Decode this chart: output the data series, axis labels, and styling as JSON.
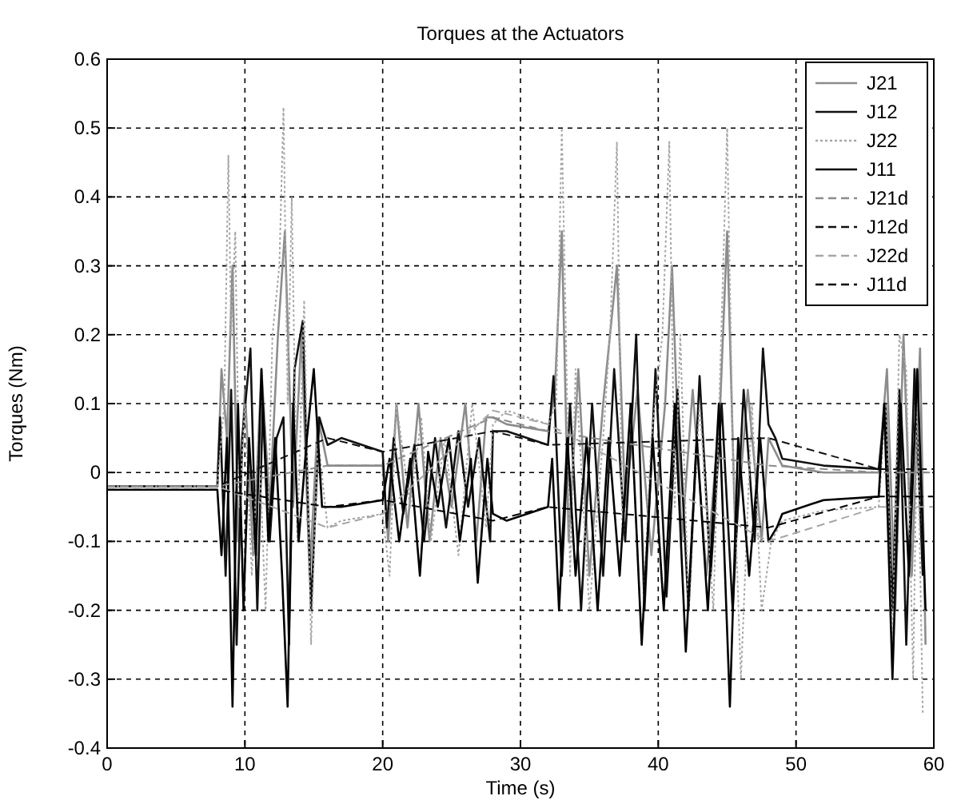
{
  "chart_data": {
    "type": "line",
    "title": "Torques at the Actuators",
    "xlabel": "Time (s)",
    "ylabel": "Torques (Nm)",
    "xlim": [
      0,
      60
    ],
    "ylim": [
      -0.4,
      0.6
    ],
    "xticks": [
      0,
      10,
      20,
      30,
      40,
      50,
      60
    ],
    "yticks": [
      -0.4,
      -0.3,
      -0.2,
      -0.1,
      0,
      0.1,
      0.2,
      0.3,
      0.4,
      0.5,
      0.6
    ],
    "grid": true,
    "legend": "top right",
    "series": [
      {
        "name": "J21",
        "color": "#8c8c8c",
        "line_style": "solid",
        "x": [
          0,
          8,
          8.3,
          8.7,
          9.1,
          9.5,
          10,
          10.6,
          11.2,
          11.8,
          12.4,
          12.9,
          13.5,
          14.1,
          14.7,
          15.3,
          16,
          17,
          20,
          20.4,
          21,
          21.8,
          22.6,
          23.4,
          24.2,
          25,
          26,
          26.8,
          27.5,
          28,
          29,
          32,
          32.5,
          33,
          33.5,
          34.2,
          35,
          36,
          37,
          37.6,
          38.5,
          39.5,
          40.5,
          41,
          41.7,
          42.5,
          43.5,
          44.5,
          45,
          45.6,
          46.5,
          47.5,
          48,
          49,
          52,
          56,
          56.6,
          57.2,
          57.8,
          58.4,
          59,
          59.4
        ],
        "values": [
          -0.02,
          -0.02,
          0.15,
          0.05,
          0.3,
          -0.1,
          0.12,
          -0.12,
          0.15,
          -0.05,
          0.2,
          0.35,
          -0.05,
          0.2,
          -0.15,
          0.08,
          0.01,
          0.01,
          0.01,
          -0.1,
          0.1,
          -0.08,
          0.1,
          -0.1,
          0.05,
          -0.05,
          0.1,
          -0.1,
          0.08,
          0.08,
          0.07,
          0.06,
          0.12,
          0.35,
          -0.1,
          0.15,
          -0.15,
          0.1,
          0.3,
          -0.05,
          0.12,
          -0.12,
          0.1,
          0.3,
          -0.1,
          0.12,
          -0.15,
          0.1,
          0.35,
          -0.1,
          0.12,
          -0.1,
          0.05,
          0.01,
          0,
          0,
          0.15,
          -0.2,
          0.2,
          -0.15,
          0.18,
          -0.25
        ]
      },
      {
        "name": "J12",
        "color": "#111111",
        "line_style": "solid",
        "x": [
          0,
          8,
          8.2,
          8.6,
          9,
          9.4,
          9.8,
          10.4,
          10.9,
          11.3,
          11.8,
          12.3,
          12.8,
          13.2,
          13.6,
          14.2,
          14.8,
          15.4,
          16,
          17,
          20,
          20.3,
          20.8,
          21.5,
          22.3,
          23,
          23.8,
          24.6,
          25.5,
          26.2,
          27,
          27.8,
          28,
          29,
          32,
          32.4,
          33,
          33.6,
          34.4,
          35.2,
          36,
          36.8,
          37.6,
          38.4,
          39,
          39.8,
          40.6,
          41.4,
          42.2,
          43,
          43.8,
          44.6,
          45.4,
          46.2,
          47,
          47.6,
          48,
          48.5,
          49,
          52,
          56,
          56.5,
          57,
          57.5,
          58,
          58.6,
          59.2
        ],
        "values": [
          -0.02,
          -0.02,
          0.08,
          -0.15,
          0.12,
          -0.25,
          0.05,
          0.18,
          -0.2,
          0.1,
          -0.1,
          0.05,
          0.08,
          -0.25,
          0.15,
          0.22,
          -0.2,
          0.08,
          0.04,
          0.05,
          0.03,
          -0.08,
          0.05,
          -0.06,
          0.04,
          -0.1,
          0.05,
          -0.08,
          0.06,
          -0.05,
          0.05,
          -0.1,
          0.06,
          0.06,
          0.04,
          0.14,
          -0.15,
          0.1,
          -0.2,
          0.1,
          -0.15,
          0.15,
          -0.1,
          0.2,
          -0.2,
          0.15,
          -0.18,
          0.12,
          -0.2,
          0.14,
          -0.15,
          0.1,
          -0.2,
          0.12,
          -0.1,
          0.18,
          0.07,
          0.05,
          0.02,
          0.01,
          0.005,
          0.1,
          -0.2,
          0.12,
          -0.25,
          0.15,
          -0.15
        ]
      },
      {
        "name": "J22",
        "color": "#a6a6a6",
        "line_style": "dotted",
        "x": [
          0,
          8,
          8.5,
          8.8,
          9,
          9.3,
          9.6,
          10,
          10.5,
          11,
          11.5,
          12,
          12.5,
          12.8,
          13.1,
          13.4,
          13.8,
          14.3,
          14.8,
          15.3,
          16,
          17,
          20,
          20.5,
          21,
          22,
          22.8,
          23.5,
          24.5,
          25.5,
          26.5,
          27.5,
          28,
          29,
          32,
          32.6,
          33,
          33.3,
          33.6,
          34,
          35,
          36,
          36.5,
          37,
          37.4,
          38,
          38.8,
          39.5,
          40.3,
          40.8,
          41.2,
          41.6,
          42.2,
          43,
          44,
          44.5,
          45,
          45.4,
          46,
          46.8,
          47.5,
          48.2,
          49,
          52,
          56,
          56.5,
          57,
          57.5,
          58,
          58.5,
          58.8,
          59.2
        ],
        "values": [
          -0.02,
          -0.02,
          0.1,
          0.46,
          0.2,
          0.35,
          -0.05,
          0.1,
          -0.15,
          0.05,
          -0.2,
          0.2,
          0.3,
          0.53,
          0.1,
          0.4,
          -0.1,
          0.25,
          -0.25,
          0.05,
          -0.08,
          -0.07,
          -0.06,
          -0.15,
          0.1,
          -0.05,
          0.08,
          -0.1,
          0.05,
          -0.12,
          0.1,
          -0.08,
          0.07,
          0.09,
          0.07,
          0.1,
          0.5,
          0.2,
          -0.15,
          0.15,
          -0.2,
          0.05,
          0.2,
          0.48,
          -0.1,
          0.1,
          -0.25,
          0.05,
          0.2,
          0.48,
          -0.05,
          0.2,
          -0.2,
          0.1,
          -0.2,
          0.15,
          0.5,
          0.05,
          -0.3,
          0.1,
          -0.2,
          -0.1,
          -0.07,
          -0.055,
          -0.05,
          0.1,
          -0.25,
          0.2,
          0.15,
          -0.3,
          0.1,
          -0.35
        ]
      },
      {
        "name": "J11",
        "color": "#000000",
        "line_style": "solid",
        "x": [
          0,
          8,
          8.3,
          8.7,
          9.1,
          9.5,
          9.9,
          10.3,
          10.8,
          11.2,
          11.7,
          12.2,
          12.7,
          13.1,
          13.5,
          13.9,
          14.5,
          15,
          15.6,
          16,
          17,
          20,
          20.5,
          21.2,
          22,
          22.7,
          23.3,
          24,
          24.8,
          25.6,
          26.4,
          26.9,
          27.6,
          28,
          29,
          32,
          32.3,
          32.8,
          33.4,
          34,
          34.8,
          35.6,
          36.4,
          37.2,
          38,
          38.8,
          39.6,
          40.4,
          41.2,
          42,
          42.8,
          43.6,
          44.4,
          45.2,
          45.8,
          46.6,
          47.4,
          48,
          48.6,
          49,
          52,
          56,
          56.4,
          57,
          57.6,
          58.2,
          58.8,
          59.4
        ],
        "values": [
          -0.025,
          -0.025,
          -0.12,
          0.05,
          -0.34,
          0.1,
          -0.2,
          0.05,
          -0.12,
          0.15,
          -0.1,
          0.05,
          -0.15,
          -0.34,
          0.1,
          -0.1,
          0.05,
          0.15,
          -0.05,
          -0.05,
          -0.05,
          -0.04,
          0.02,
          -0.1,
          0.02,
          -0.15,
          0.03,
          -0.05,
          0.05,
          -0.1,
          0.02,
          -0.16,
          0.02,
          -0.06,
          -0.07,
          -0.05,
          0.02,
          -0.2,
          0.05,
          -0.15,
          0.05,
          -0.2,
          0.05,
          -0.15,
          0.1,
          -0.25,
          0.05,
          -0.2,
          0.1,
          -0.26,
          0.05,
          -0.2,
          0.1,
          -0.34,
          0.05,
          -0.15,
          0.05,
          -0.1,
          -0.08,
          -0.06,
          -0.04,
          -0.035,
          0.1,
          -0.3,
          0.1,
          -0.15,
          0.15,
          -0.2
        ]
      },
      {
        "name": "J21d",
        "color": "#8c8c8c",
        "line_style": "dashed",
        "x": [
          0,
          8,
          16,
          20,
          28,
          32,
          48,
          56,
          60
        ],
        "values": [
          -0.02,
          -0.02,
          0.01,
          0.01,
          0.08,
          0.06,
          0.01,
          0,
          0
        ]
      },
      {
        "name": "J12d",
        "color": "#111111",
        "line_style": "dashed",
        "x": [
          0,
          8,
          16,
          20,
          28,
          32,
          48,
          56,
          60
        ],
        "values": [
          -0.02,
          -0.02,
          0.05,
          0.03,
          0.06,
          0.04,
          0.05,
          0.005,
          0.005
        ]
      },
      {
        "name": "J22d",
        "color": "#a6a6a6",
        "line_style": "dashed",
        "x": [
          0,
          8,
          16,
          20,
          28,
          32,
          48,
          56,
          60
        ],
        "values": [
          -0.02,
          -0.02,
          -0.08,
          -0.06,
          0.09,
          0.07,
          -0.1,
          -0.05,
          -0.05
        ]
      },
      {
        "name": "J11d",
        "color": "#000000",
        "line_style": "dashed",
        "x": [
          0,
          8,
          16,
          20,
          28,
          32,
          48,
          56,
          60
        ],
        "values": [
          -0.025,
          -0.025,
          -0.05,
          -0.04,
          -0.07,
          -0.05,
          -0.08,
          -0.035,
          -0.035
        ]
      }
    ]
  }
}
